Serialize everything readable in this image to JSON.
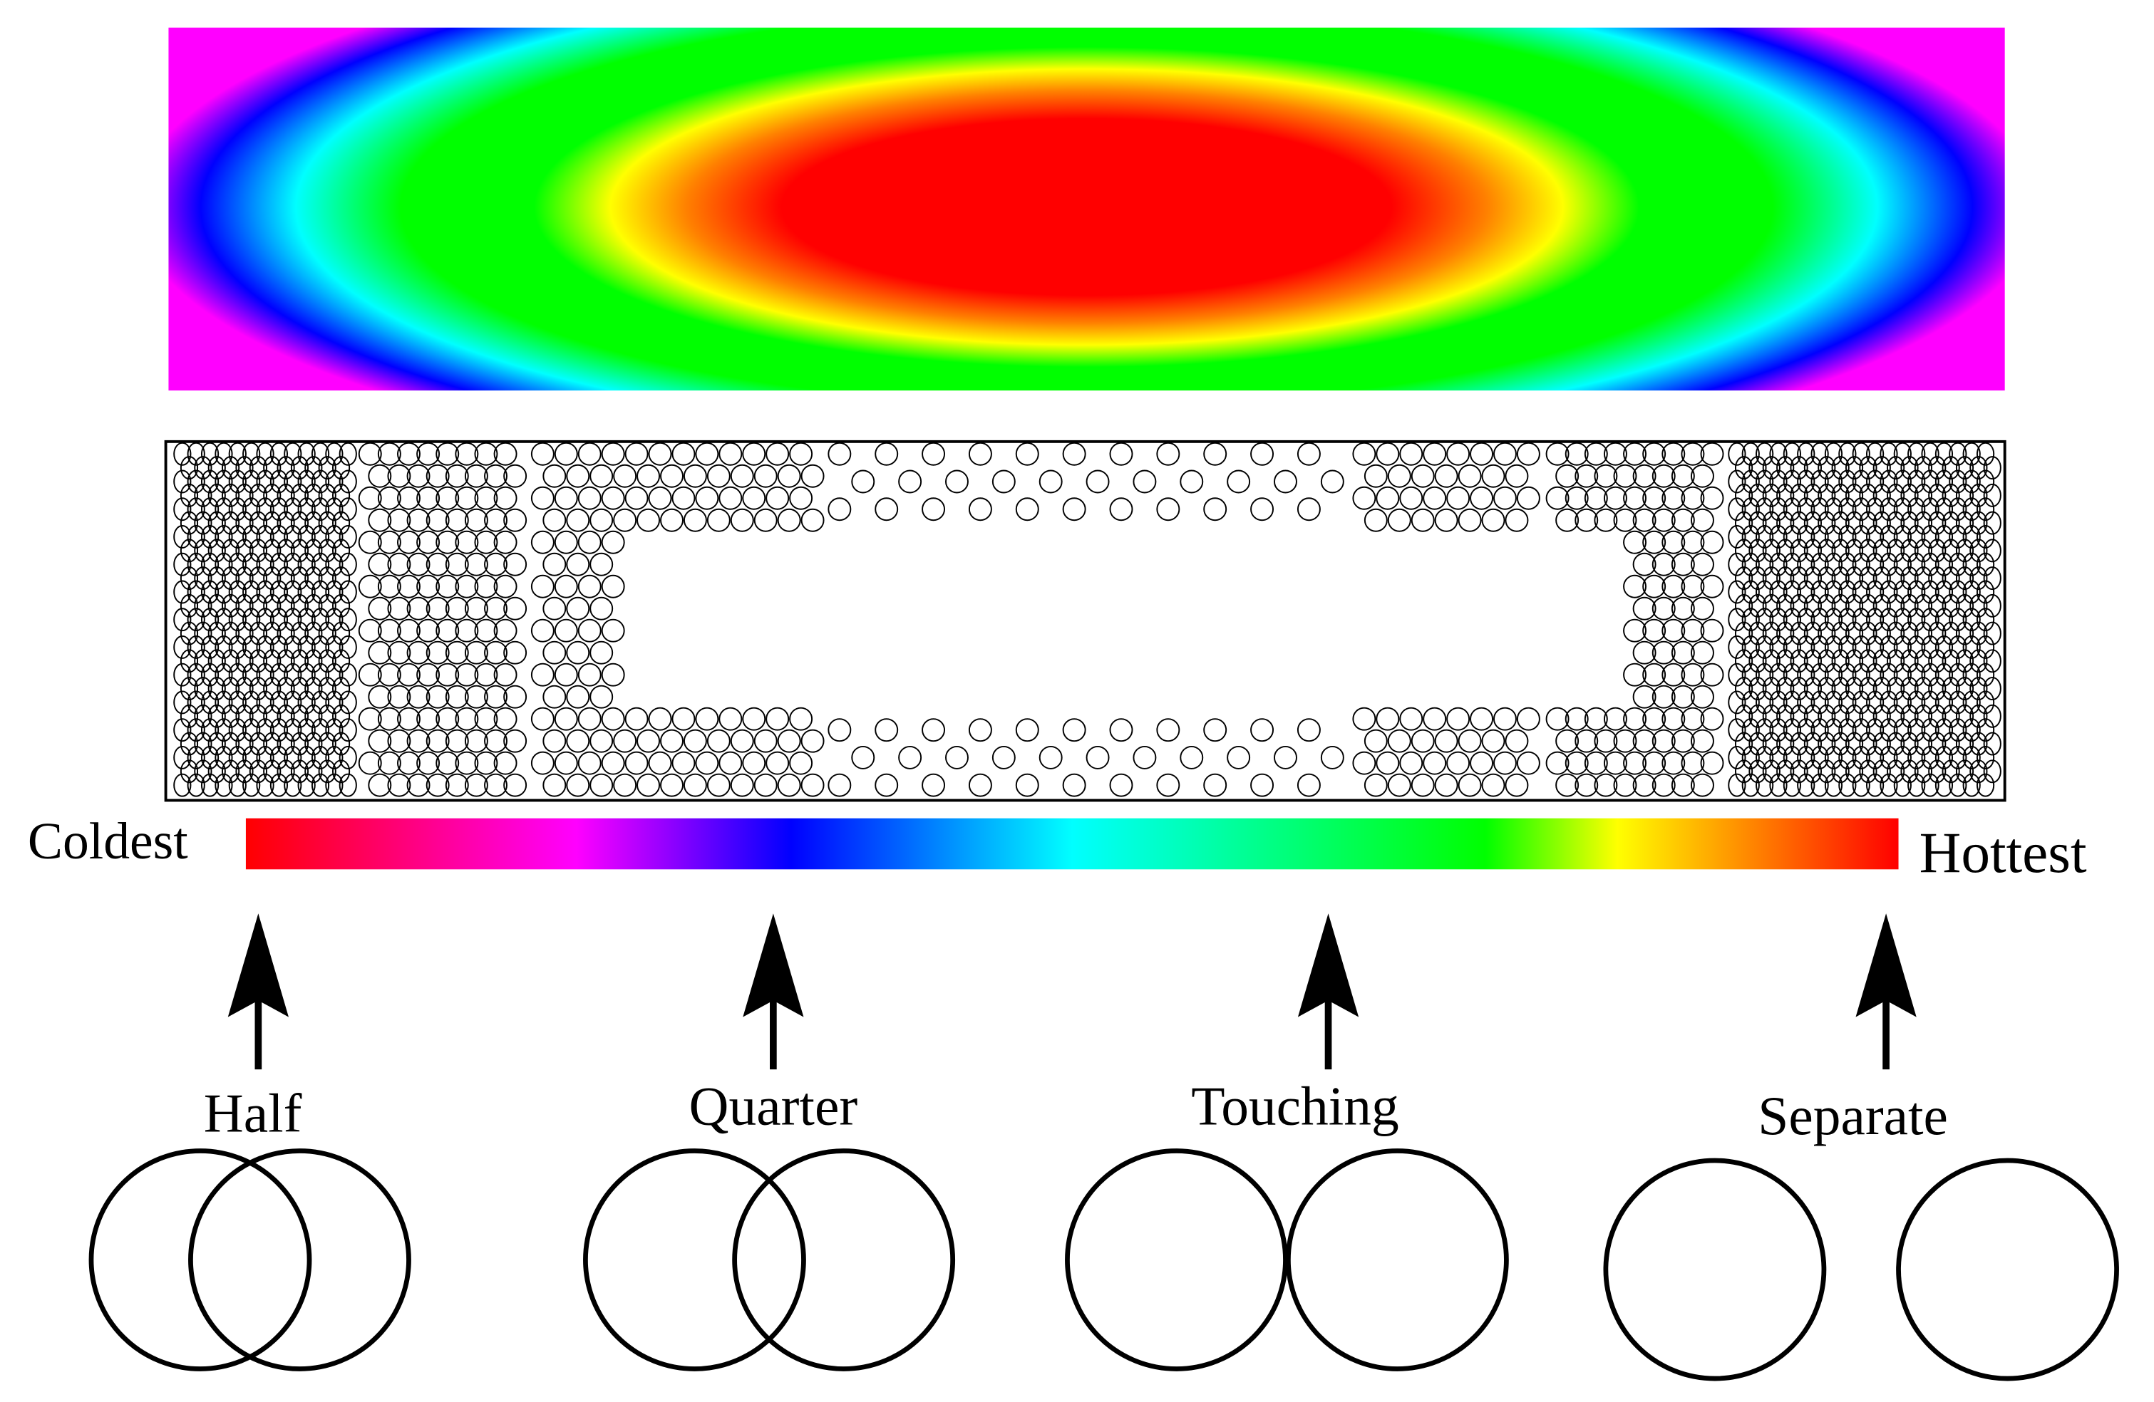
{
  "scale": {
    "cold_label": "Coldest",
    "hot_label": "Hottest"
  },
  "overlaps": [
    {
      "label": "Half"
    },
    {
      "label": "Quarter"
    },
    {
      "label": "Touching"
    },
    {
      "label": "Separate"
    }
  ]
}
